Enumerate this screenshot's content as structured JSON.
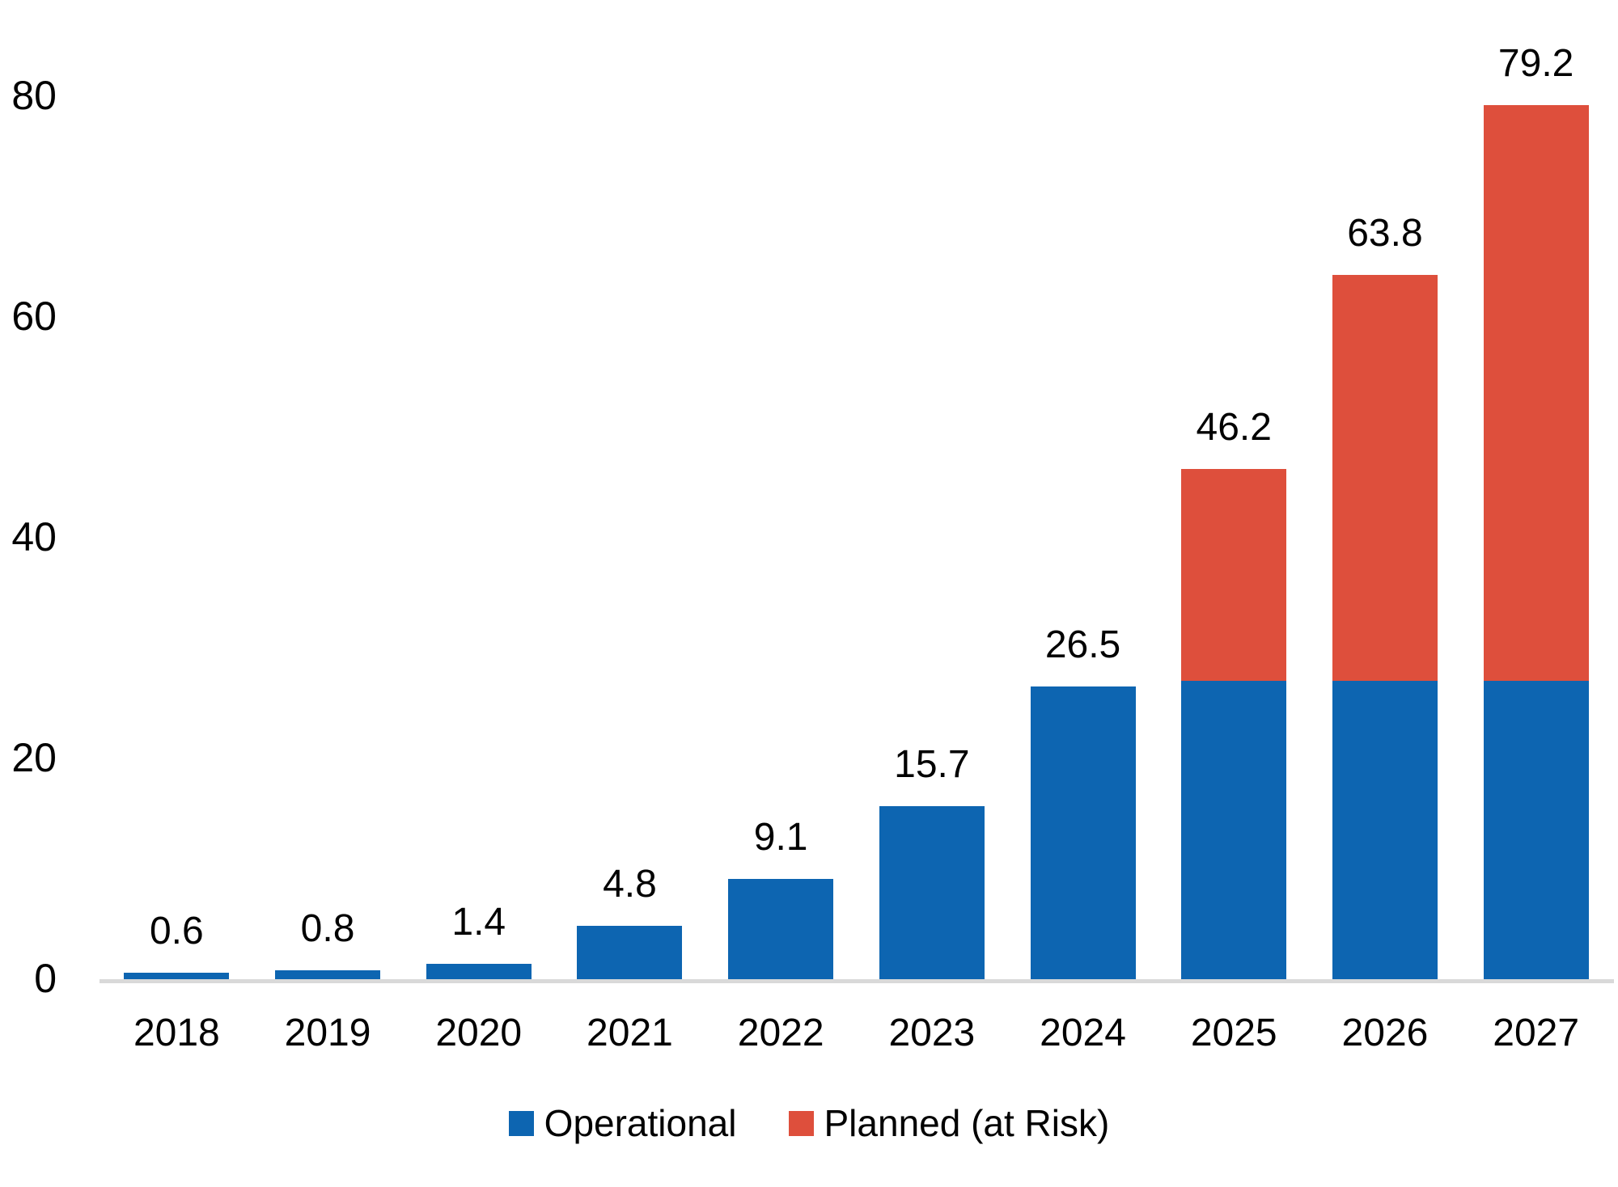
{
  "chart_data": {
    "type": "bar",
    "stacked": true,
    "title": "",
    "xlabel": "",
    "ylabel": "",
    "categories": [
      "2018",
      "2019",
      "2020",
      "2021",
      "2022",
      "2023",
      "2024",
      "2025",
      "2026",
      "2027"
    ],
    "series": [
      {
        "name": "Operational",
        "color": "#0d65b1",
        "values": [
          0.6,
          0.8,
          1.4,
          4.8,
          9.1,
          15.7,
          26.5,
          27.0,
          27.0,
          27.0
        ]
      },
      {
        "name": "Planned (at Risk)",
        "color": "#de4f3c",
        "values": [
          0,
          0,
          0,
          0,
          0,
          0,
          0,
          19.2,
          36.8,
          52.2
        ]
      }
    ],
    "total_labels": [
      "0.6",
      "0.8",
      "1.4",
      "4.8",
      "9.1",
      "15.7",
      "26.5",
      "46.2",
      "63.8",
      "79.2"
    ],
    "ylim": [
      0,
      80
    ],
    "yticks": [
      "0",
      "20",
      "40",
      "60",
      "80"
    ],
    "grid": false,
    "legend_position": "bottom"
  },
  "legend": {
    "items": [
      {
        "label": "Operational",
        "color": "#0d65b1"
      },
      {
        "label": "Planned (at Risk)",
        "color": "#de4f3c"
      }
    ]
  },
  "colors": {
    "operational": "#0d65b1",
    "planned": "#de4f3c",
    "axis_line": "#d9d9d9",
    "text": "#000000",
    "background": "#ffffff"
  }
}
